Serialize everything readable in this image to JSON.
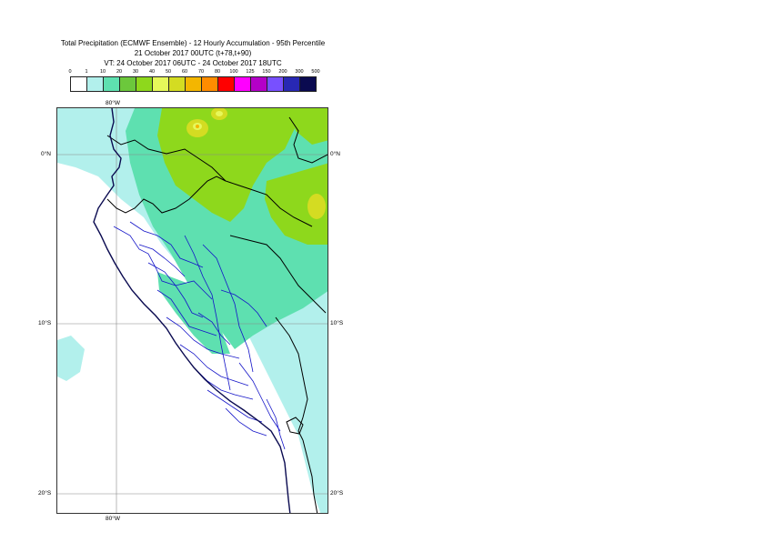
{
  "title": {
    "line1": "Total Precipitation (ECMWF Ensemble) - 12 Hourly Accumulation - 95th Percentile",
    "line2": "21 October 2017 00UTC (t+78,t+90)",
    "line3": "VT: 24 October 2017 06UTC - 24 October 2017 18UTC"
  },
  "legend": {
    "ticks": [
      "0",
      "1",
      "10",
      "20",
      "30",
      "40",
      "50",
      "60",
      "70",
      "80",
      "100",
      "125",
      "150",
      "200",
      "300",
      "500"
    ],
    "colors": [
      "#ffffff",
      "#b2f0ec",
      "#5ee0b0",
      "#6cc83c",
      "#8ed81c",
      "#e6f85a",
      "#d4dc22",
      "#f4b600",
      "#ff8c00",
      "#ff0000",
      "#ff00ff",
      "#b400c8",
      "#7850ff",
      "#2828b4",
      "#0a0a50"
    ]
  },
  "map": {
    "lon_label_top": "80°W",
    "lon_label_bottom": "80°W",
    "lat_labels": [
      "0°N",
      "10°S",
      "20°S"
    ],
    "colors": {
      "ocean": "#ffffff",
      "light_cyan": "#b2f0ec",
      "green_cyan": "#5ee0b0",
      "yellow_green": "#8ed81c",
      "olive": "#d4dc22",
      "coast": "#0a0a50",
      "border": "#000000",
      "admin": "#1414c8",
      "grid": "#888888"
    }
  }
}
